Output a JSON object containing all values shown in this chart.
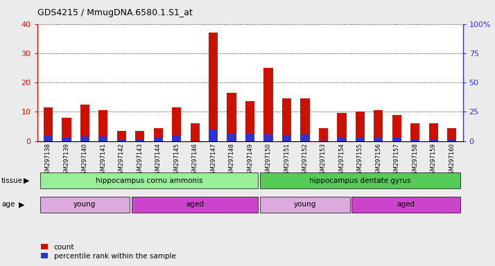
{
  "title": "GDS4215 / MmugDNA.6580.1.S1_at",
  "samples": [
    "GSM297138",
    "GSM297139",
    "GSM297140",
    "GSM297141",
    "GSM297142",
    "GSM297143",
    "GSM297144",
    "GSM297145",
    "GSM297146",
    "GSM297147",
    "GSM297148",
    "GSM297149",
    "GSM297150",
    "GSM297151",
    "GSM297152",
    "GSM297153",
    "GSM297154",
    "GSM297155",
    "GSM297156",
    "GSM297157",
    "GSM297158",
    "GSM297159",
    "GSM297160"
  ],
  "count_values": [
    11.5,
    8.0,
    12.5,
    10.5,
    3.5,
    3.5,
    4.5,
    11.5,
    6.0,
    37.0,
    16.5,
    13.5,
    25.0,
    14.5,
    14.5,
    4.5,
    9.5,
    10.0,
    10.5,
    9.0,
    6.0,
    6.0,
    4.5
  ],
  "percentile_values": [
    5.0,
    3.5,
    4.0,
    4.0,
    1.0,
    1.5,
    3.5,
    5.0,
    0.0,
    10.0,
    6.0,
    6.0,
    5.5,
    5.0,
    5.5,
    0.5,
    3.5,
    3.5,
    3.5,
    2.5,
    1.5,
    1.0,
    1.5
  ],
  "ylim_left": [
    0,
    40
  ],
  "ylim_right": [
    0,
    100
  ],
  "yticks_left": [
    0,
    10,
    20,
    30,
    40
  ],
  "yticks_right": [
    0,
    25,
    50,
    75,
    100
  ],
  "bar_width": 0.5,
  "count_color": "#cc1100",
  "percentile_color": "#3333cc",
  "grid_color": "#000000",
  "tissue_groups": [
    {
      "label": "hippocampus cornu ammonis",
      "start": 0,
      "end": 12,
      "color": "#99ee99"
    },
    {
      "label": "hippocampus dentate gyrus",
      "start": 12,
      "end": 23,
      "color": "#55cc55"
    }
  ],
  "age_groups": [
    {
      "label": "young",
      "start": 0,
      "end": 5,
      "color": "#ddaadd"
    },
    {
      "label": "aged",
      "start": 5,
      "end": 12,
      "color": "#cc44cc"
    },
    {
      "label": "young",
      "start": 12,
      "end": 17,
      "color": "#ddaadd"
    },
    {
      "label": "aged",
      "start": 17,
      "end": 23,
      "color": "#cc44cc"
    }
  ],
  "legend_count_label": "count",
  "legend_pct_label": "percentile rank within the sample",
  "tissue_label": "tissue",
  "age_label": "age",
  "background_color": "#ebebeb",
  "plot_bg_color": "#ffffff"
}
